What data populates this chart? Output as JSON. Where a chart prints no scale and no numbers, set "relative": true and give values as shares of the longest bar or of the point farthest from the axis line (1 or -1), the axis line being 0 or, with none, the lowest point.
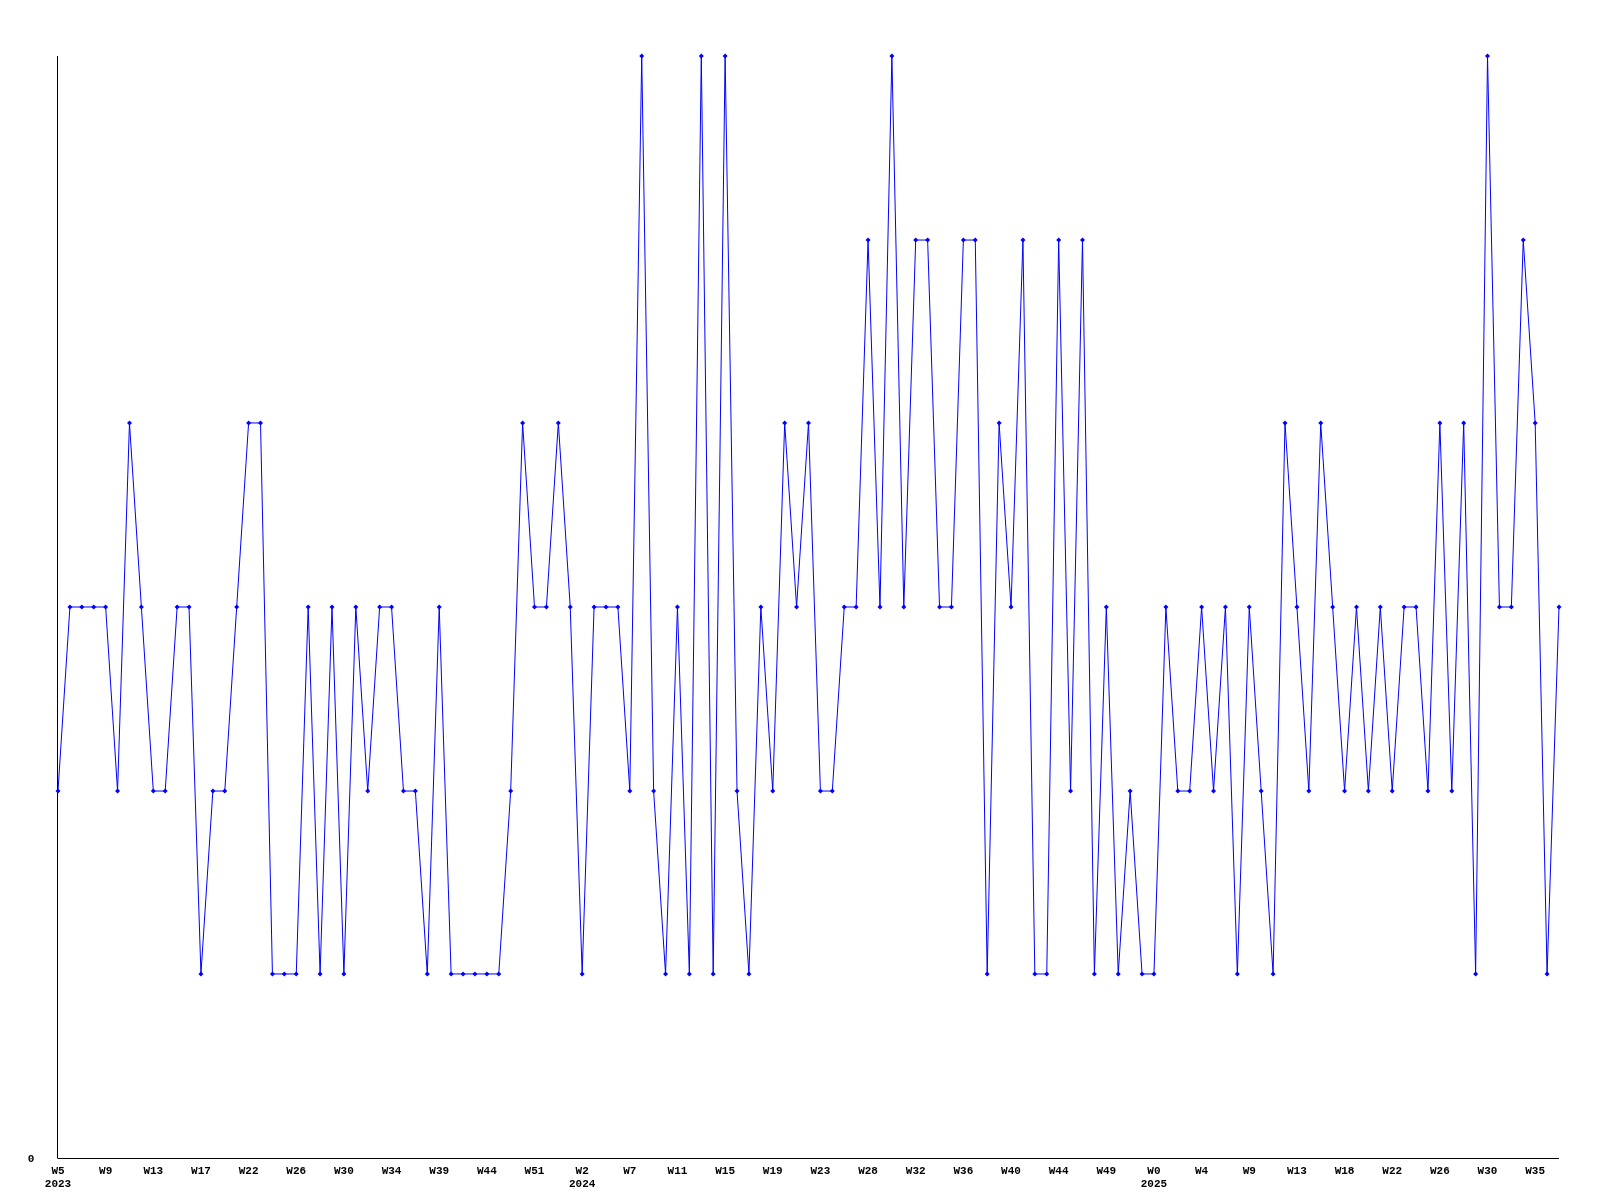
{
  "chart_data": {
    "type": "line",
    "relative": true,
    "marker": "diamond",
    "annotations": [
      "0"
    ],
    "categories": [
      "W5\n2023",
      null,
      null,
      null,
      "W9",
      null,
      null,
      null,
      "W13",
      null,
      null,
      null,
      "W17",
      null,
      null,
      null,
      "W22",
      null,
      null,
      null,
      "W26",
      null,
      null,
      null,
      "W30",
      null,
      null,
      null,
      "W34",
      null,
      null,
      null,
      "W39",
      null,
      null,
      null,
      "W44",
      null,
      null,
      null,
      "W51",
      null,
      null,
      null,
      "W2\n2024",
      null,
      null,
      null,
      "W7",
      null,
      null,
      null,
      "W11",
      null,
      null,
      null,
      "W15",
      null,
      null,
      null,
      "W19",
      null,
      null,
      null,
      "W23",
      null,
      null,
      null,
      "W28",
      null,
      null,
      null,
      "W32",
      null,
      null,
      null,
      "W36",
      null,
      null,
      null,
      "W40",
      null,
      null,
      null,
      "W44",
      null,
      null,
      null,
      "W49",
      null,
      null,
      null,
      "W0\n2025",
      null,
      null,
      null,
      "W4",
      null,
      null,
      null,
      "W9",
      null,
      null,
      null,
      "W13",
      null,
      null,
      null,
      "W18",
      null,
      null,
      null,
      "W22",
      null,
      null,
      null,
      "W26",
      null,
      null,
      null,
      "W30",
      null,
      null,
      null,
      "W35",
      null,
      null
    ],
    "series": [
      {
        "color": "#0000ff",
        "values": [
          0.333,
          0.5,
          0.5,
          0.5,
          0.5,
          0.333,
          0.667,
          0.5,
          0.333,
          0.333,
          0.5,
          0.5,
          0.167,
          0.333,
          0.333,
          0.5,
          0.667,
          0.667,
          0.167,
          0.167,
          0.167,
          0.5,
          0.167,
          0.5,
          0.167,
          0.5,
          0.333,
          0.5,
          0.5,
          0.333,
          0.333,
          0.167,
          0.5,
          0.167,
          0.167,
          0.167,
          0.167,
          0.167,
          0.333,
          0.667,
          0.5,
          0.5,
          0.667,
          0.5,
          0.167,
          0.5,
          0.5,
          0.5,
          0.333,
          1,
          0.333,
          0.167,
          0.5,
          0.167,
          1,
          0.167,
          1,
          0.333,
          0.167,
          0.5,
          0.333,
          0.667,
          0.5,
          0.667,
          0.333,
          0.333,
          0.5,
          0.5,
          0.833,
          0.5,
          1,
          0.5,
          0.833,
          0.833,
          0.5,
          0.5,
          0.833,
          0.833,
          0.167,
          0.667,
          0.5,
          0.833,
          0.167,
          0.167,
          0.833,
          0.333,
          0.833,
          0.167,
          0.5,
          0.167,
          0.333,
          0.167,
          0.167,
          0.5,
          0.333,
          0.333,
          0.5,
          0.333,
          0.5,
          0.167,
          0.5,
          0.333,
          0.167,
          0.667,
          0.5,
          0.333,
          0.667,
          0.5,
          0.333,
          0.5,
          0.333,
          0.5,
          0.333,
          0.5,
          0.5,
          0.333,
          0.667,
          0.333,
          0.667,
          0.167,
          1,
          0.5,
          0.5,
          0.833,
          0.667,
          0.167,
          0.5
        ]
      }
    ]
  }
}
